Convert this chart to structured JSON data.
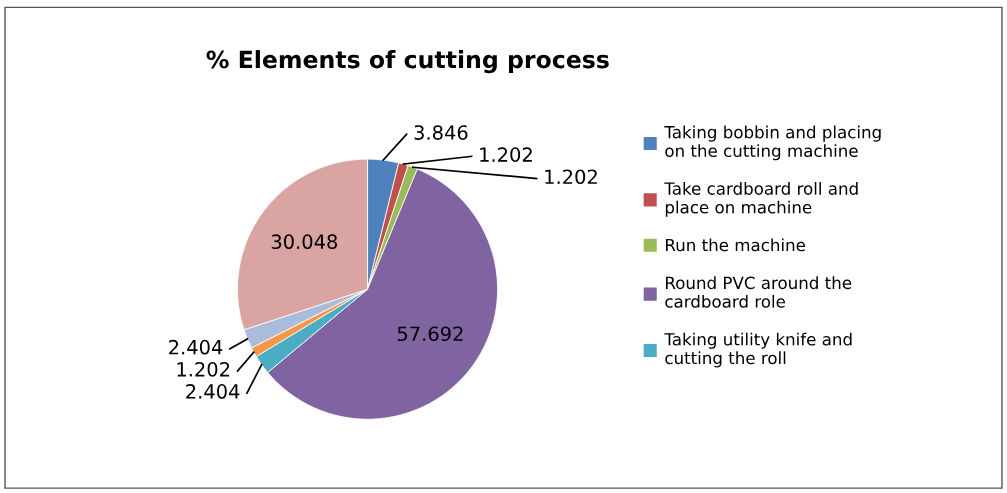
{
  "chart_data": {
    "type": "pie",
    "title": "% Elements of cutting process",
    "categories": [
      "Taking bobbin and placing\non the cutting machine",
      "Take cardboard roll and\nplace on machine",
      "Run the machine",
      "Round PVC around the\ncardboard role",
      "Taking utility knife and\ncutting the roll",
      null,
      null,
      null
    ],
    "values": [
      3.846,
      1.202,
      1.202,
      57.692,
      2.404,
      1.202,
      2.404,
      30.048
    ],
    "colors": [
      "#4f81bd",
      "#c0504d",
      "#9bbb59",
      "#8064a2",
      "#4bacc6",
      "#f79646",
      "#a9bcdc",
      "#d9a4a2"
    ],
    "data_labels": true,
    "legend": "right"
  }
}
